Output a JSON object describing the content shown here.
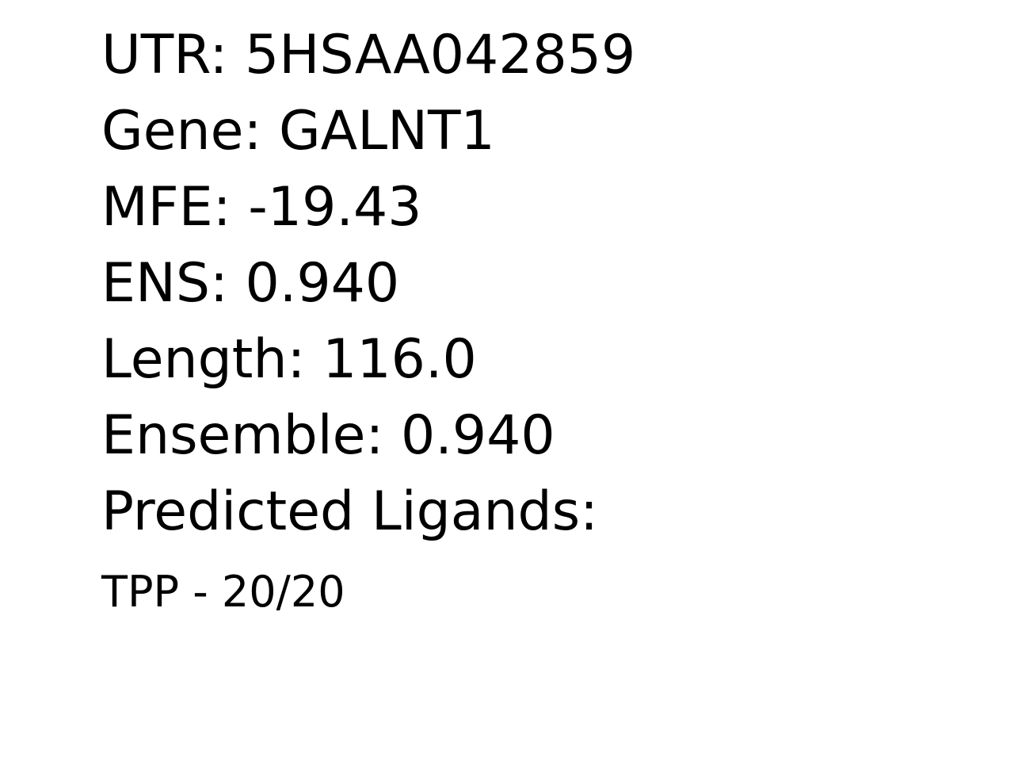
{
  "record": {
    "utr": "UTR: 5HSAA042859",
    "gene": "Gene: GALNT1",
    "mfe": "MFE: -19.43",
    "ens": "ENS: 0.940",
    "length": "Length: 116.0",
    "ensemble": "Ensemble: 0.940",
    "ligands_heading": "Predicted Ligands:",
    "ligands": [
      "TPP - 20/20"
    ]
  }
}
